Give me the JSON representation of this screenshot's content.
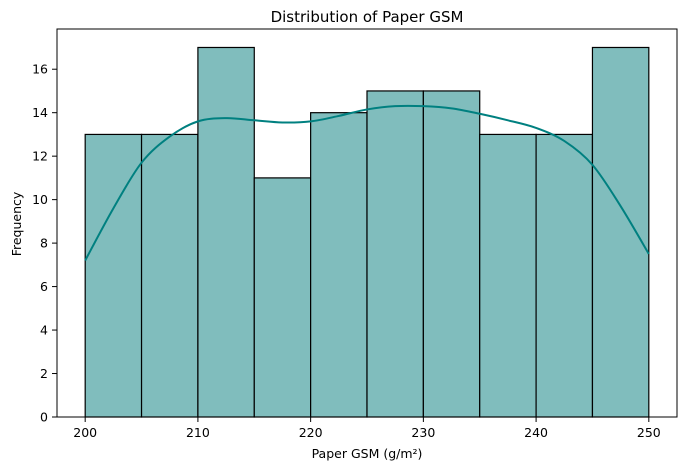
{
  "chart_data": {
    "type": "bar",
    "title": "Distribution of Paper GSM",
    "xlabel": "Paper GSM (g/m²)",
    "ylabel": "Frequency",
    "bins": [
      {
        "start": 200,
        "end": 205,
        "value": 13
      },
      {
        "start": 205,
        "end": 210,
        "value": 13
      },
      {
        "start": 210,
        "end": 215,
        "value": 17
      },
      {
        "start": 215,
        "end": 220,
        "value": 11
      },
      {
        "start": 220,
        "end": 225,
        "value": 14
      },
      {
        "start": 225,
        "end": 230,
        "value": 15
      },
      {
        "start": 230,
        "end": 235,
        "value": 15
      },
      {
        "start": 235,
        "end": 240,
        "value": 13
      },
      {
        "start": 240,
        "end": 245,
        "value": 13
      },
      {
        "start": 245,
        "end": 250,
        "value": 17
      }
    ],
    "kde": {
      "x": [
        200,
        202.5,
        205,
        207.5,
        210,
        212.5,
        215,
        217.5,
        220,
        222.5,
        225,
        227.5,
        230,
        232.5,
        235,
        237.5,
        240,
        242.5,
        245,
        247.5,
        250
      ],
      "y": [
        7.2,
        9.6,
        11.7,
        12.9,
        13.6,
        13.75,
        13.65,
        13.55,
        13.6,
        13.85,
        14.15,
        14.3,
        14.3,
        14.2,
        13.95,
        13.65,
        13.3,
        12.7,
        11.6,
        9.7,
        7.5
      ]
    },
    "xticks": [
      200,
      210,
      220,
      230,
      240,
      250
    ],
    "yticks": [
      0,
      2,
      4,
      6,
      8,
      10,
      12,
      14,
      16
    ],
    "xlim": [
      197.5,
      252.5
    ],
    "ylim": [
      0,
      17.85
    ],
    "grid": false,
    "colors": {
      "bar_fill": "#80bdbd",
      "bar_edge": "#000000",
      "kde_line": "#008080"
    }
  }
}
